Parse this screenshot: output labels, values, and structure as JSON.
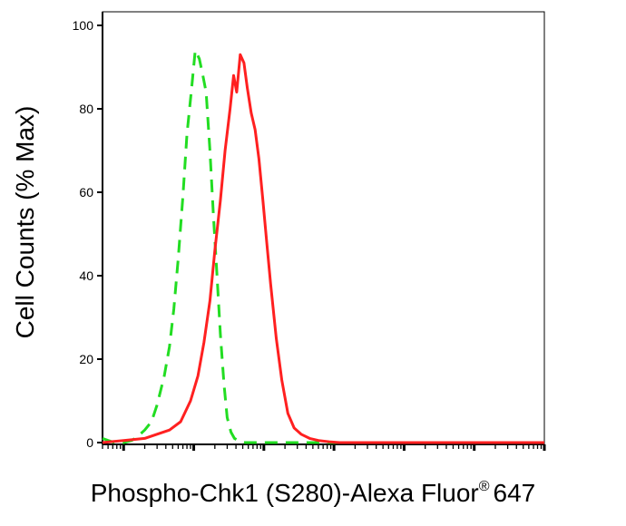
{
  "chart_data": {
    "type": "line",
    "title": "",
    "xlabel_main": "Phospho-Chk1 (S280)-Alexa Fluor",
    "xlabel_sup": "®",
    "xlabel_tail": "647",
    "ylabel": "Cell Counts (% Max)",
    "x_scale": "log",
    "xlim": [
      0.5,
      1000000
    ],
    "ylim": [
      0,
      100
    ],
    "y_ticks": [
      0,
      20,
      40,
      60,
      80,
      100
    ],
    "y_tick_labels": [
      "0",
      "20",
      "40",
      "60",
      "80",
      "100"
    ],
    "x_major_ticks": [
      10,
      10000,
      10000000
    ],
    "series": [
      {
        "color": "#22dd22",
        "dash": true,
        "x": [
          0.5,
          0.6,
          0.75,
          1.0,
          1.3,
          1.6,
          2.0,
          2.5,
          3.0,
          3.8,
          4.5,
          5.2,
          6.0,
          7.0,
          8.0,
          9.2,
          10.5,
          12.0,
          13.5,
          15.0,
          17.0,
          19.0,
          21.5,
          24.0,
          27.0,
          30.0,
          34.0,
          38.0,
          43.0,
          48.0,
          54.0,
          61.0,
          68.0,
          77.0,
          87.0,
          100.0,
          150.0,
          300.0,
          1000.0,
          10000.0,
          100000.0,
          1000000.0
        ],
        "y": [
          1,
          0.5,
          0,
          0,
          0.5,
          1.5,
          3,
          5,
          9,
          16,
          23,
          32,
          44,
          59,
          74,
          84,
          94,
          92,
          88,
          84,
          70,
          55,
          40,
          26,
          14,
          6,
          2.5,
          1,
          0.5,
          0.2,
          0,
          0,
          0,
          0,
          0,
          0,
          0,
          0,
          0,
          0,
          0,
          0
        ]
      },
      {
        "color": "#ff2020",
        "dash": false,
        "x": [
          0.5,
          1.0,
          2.0,
          3.0,
          4.5,
          6.5,
          9.0,
          11.5,
          14.0,
          17.0,
          20.0,
          24.0,
          28.0,
          33.0,
          37.0,
          41.0,
          46.0,
          52.0,
          58.0,
          66.0,
          75.0,
          85.0,
          97.0,
          110.0,
          125.0,
          150.0,
          180.0,
          220.0,
          270.0,
          340.0,
          450.0,
          600.0,
          850.0,
          1200.0,
          2000.0,
          4000.0,
          10000.0,
          100000.0,
          1000000.0
        ],
        "y": [
          0,
          0.5,
          1,
          2,
          3,
          5,
          10,
          16,
          24,
          34,
          46,
          58,
          70,
          80,
          88,
          84,
          93,
          91,
          85,
          79,
          75,
          68,
          58,
          48,
          38,
          25,
          15,
          7,
          3.5,
          2,
          1,
          0.5,
          0.2,
          0,
          0,
          0,
          0,
          0,
          0
        ]
      }
    ]
  }
}
